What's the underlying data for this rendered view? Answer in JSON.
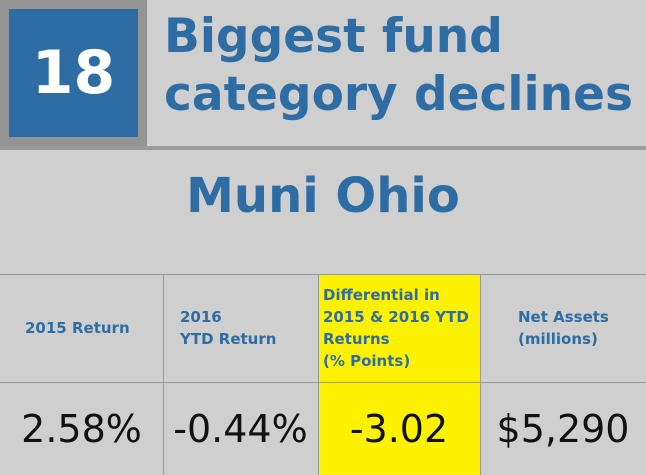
{
  "rank": "18",
  "title": "Biggest fund\ncategory declines",
  "subtitle": "Muni Ohio",
  "columns": [
    {
      "header": "2015 Return",
      "value": "2.58%"
    },
    {
      "header": "2016\nYTD Return",
      "value": "-0.44%"
    },
    {
      "header": "Differential in\n2015 & 2016 YTD\nReturns\n(% Points)",
      "value": "-3.02"
    },
    {
      "header": "Net Assets\n(millions)",
      "value": "$5,290"
    }
  ],
  "colors": {
    "accent": "#2e6ca4",
    "highlight": "#fff200",
    "background": "#cfcfcf"
  }
}
